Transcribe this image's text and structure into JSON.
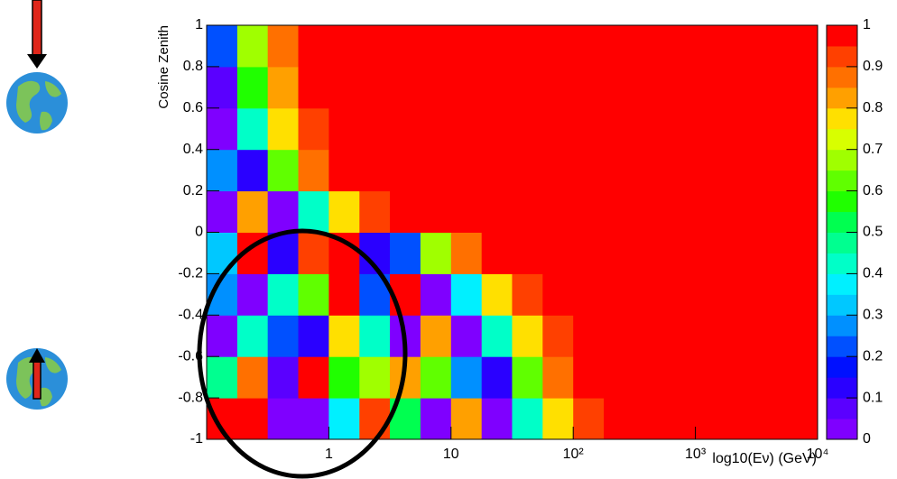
{
  "chart_data": {
    "type": "heatmap",
    "xlabel": "log10(Eν) (GeV)",
    "ylabel": "Cosine Zenith",
    "xlog": true,
    "xlim": [
      0.1,
      10000
    ],
    "xticks": [
      1,
      10,
      {
        "value": 100,
        "label": "10²"
      },
      {
        "value": 1000,
        "label": "10³"
      },
      {
        "value": 10000,
        "label": "10⁴"
      }
    ],
    "ylim": [
      -1,
      1
    ],
    "yticks": [
      -1,
      -0.8,
      -0.6,
      -0.4,
      -0.2,
      0,
      0.2,
      0.4,
      0.6,
      0.8,
      1
    ],
    "zlim": [
      0,
      1
    ],
    "zticks": [
      0,
      0.1,
      0.2,
      0.3,
      0.4,
      0.5,
      0.6,
      0.7,
      0.8,
      0.9,
      1
    ],
    "colors": [
      "#7f00ff",
      "#5a00ff",
      "#2a00ff",
      "#0010ff",
      "#0050ff",
      "#0090ff",
      "#00c8ff",
      "#00f0ff",
      "#00ffc8",
      "#00ff90",
      "#00ff50",
      "#20ff00",
      "#60ff00",
      "#a0ff00",
      "#d8ff00",
      "#ffe000",
      "#ffa000",
      "#ff7000",
      "#ff4000",
      "#ff0000"
    ],
    "xbins": [
      0.1,
      0.178,
      0.316,
      0.562,
      1,
      1.78,
      3.16,
      5.62,
      10,
      17.8,
      31.6,
      56.2,
      100,
      178,
      316,
      562,
      1000,
      1780,
      3160,
      5620,
      10000
    ],
    "ybins": [
      -1,
      -0.8,
      -0.6,
      -0.4,
      -0.2,
      0,
      0.2,
      0.4,
      0.6,
      0.8,
      1
    ],
    "z": [
      [
        1,
        0.98,
        0,
        0.01,
        0.35,
        0.9,
        0.5,
        0.02,
        0.84,
        0,
        0.42,
        0.78,
        0.93,
        0.98,
        1,
        1,
        1,
        1,
        1,
        1
      ],
      [
        0.47,
        0.89,
        0.05,
        0.98,
        0.58,
        0.69,
        0.81,
        0.64,
        0.28,
        0.13,
        0.61,
        0.86,
        0.96,
        0.99,
        1,
        1,
        1,
        1,
        1,
        1
      ],
      [
        0,
        0.41,
        0.23,
        0.14,
        0.79,
        0.43,
        0.01,
        0.83,
        0,
        0.43,
        0.79,
        0.93,
        0.98,
        0.99,
        1,
        1,
        1,
        1,
        1,
        1
      ],
      [
        0.29,
        0,
        0.42,
        0.61,
        0.95,
        0.21,
        0.95,
        0,
        0.37,
        0.76,
        0.92,
        0.97,
        0.99,
        1,
        1,
        1,
        1,
        1,
        1,
        1
      ],
      [
        0.33,
        1,
        0.13,
        0.91,
        0.95,
        0.1,
        0.24,
        0.68,
        0.89,
        0.96,
        0.99,
        1,
        1,
        1,
        1,
        1,
        1,
        1,
        1,
        1
      ],
      [
        0,
        0.8,
        0,
        0.44,
        0.79,
        0.93,
        0.98,
        0.99,
        1,
        1,
        1,
        1,
        1,
        1,
        1,
        1,
        1,
        1,
        1,
        1
      ],
      [
        0.29,
        0.13,
        0.61,
        0.86,
        0.95,
        0.99,
        1,
        1,
        1,
        1,
        1,
        1,
        1,
        1,
        1,
        1,
        1,
        1,
        1,
        1
      ],
      [
        0,
        0.42,
        0.78,
        0.93,
        0.98,
        0.99,
        1,
        1,
        1,
        1,
        1,
        1,
        1,
        1,
        1,
        1,
        1,
        1,
        1,
        1
      ],
      [
        0.07,
        0.55,
        0.84,
        0.95,
        0.98,
        0.99,
        1,
        1,
        1,
        1,
        1,
        1,
        1,
        1,
        1,
        1,
        1,
        1,
        1,
        1
      ],
      [
        0.23,
        0.68,
        0.89,
        0.96,
        0.99,
        1,
        1,
        1,
        1,
        1,
        1,
        1,
        1,
        1,
        1,
        1,
        1,
        1,
        1,
        1
      ]
    ]
  }
}
